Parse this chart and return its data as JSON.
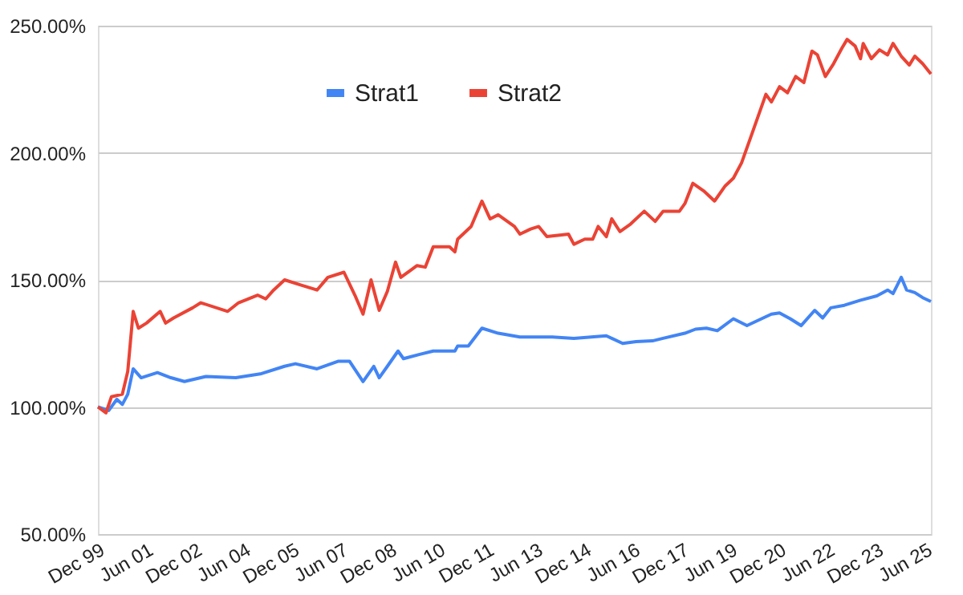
{
  "chart_data": {
    "type": "line",
    "series": [
      {
        "name": "Strat1",
        "color": "#4285f4",
        "x": [
          "1999-12",
          "2000-04",
          "2000-07",
          "2000-09",
          "2000-11",
          "2001-01",
          "2001-04",
          "2001-10",
          "2002-03",
          "2002-08",
          "2003-04",
          "2004-03",
          "2004-12",
          "2005-09",
          "2006-01",
          "2006-09",
          "2007-05",
          "2007-09",
          "2008-02",
          "2008-06",
          "2008-08",
          "2008-11",
          "2009-03",
          "2009-05",
          "2009-11",
          "2010-04",
          "2010-12",
          "2011-01",
          "2011-05",
          "2011-10",
          "2012-04",
          "2012-12",
          "2013-12",
          "2014-08",
          "2015-08",
          "2016-02",
          "2016-07",
          "2017-01",
          "2017-05",
          "2018-01",
          "2018-05",
          "2018-09",
          "2019-01",
          "2019-07",
          "2019-12",
          "2020-06",
          "2020-09",
          "2020-12",
          "2021-04",
          "2021-08",
          "2022-01",
          "2022-04",
          "2022-07",
          "2022-12",
          "2023-06",
          "2023-12",
          "2024-04",
          "2024-06",
          "2024-09",
          "2024-11",
          "2025-02",
          "2025-05",
          "2025-08"
        ],
        "values": [
          100,
          98.6,
          103,
          101,
          105,
          115,
          111.5,
          113.5,
          111.5,
          110,
          112,
          111.5,
          113,
          116,
          117,
          115,
          118,
          118,
          110,
          116,
          111.5,
          116,
          122,
          119,
          120.7,
          122,
          122,
          124,
          124,
          131,
          129,
          127.5,
          127.5,
          127,
          128,
          125,
          125.7,
          126,
          127,
          129,
          130.6,
          131,
          130,
          134.7,
          132,
          135,
          136.5,
          137,
          134.7,
          132,
          138,
          135,
          139,
          140,
          142,
          143.7,
          146,
          144.6,
          151,
          146,
          145,
          143,
          141.5
        ]
      },
      {
        "name": "Strat2",
        "color": "#ea4335",
        "x": [
          "1999-12",
          "2000-03",
          "2000-05",
          "2000-09",
          "2000-11",
          "2001-01",
          "2001-03",
          "2001-06",
          "2001-11",
          "2002-01",
          "2002-04",
          "2002-11",
          "2003-02",
          "2003-12",
          "2004-04",
          "2004-11",
          "2005-02",
          "2005-05",
          "2005-09",
          "2006-03",
          "2006-09",
          "2007-01",
          "2007-07",
          "2007-11",
          "2008-02",
          "2008-05",
          "2008-08",
          "2008-11",
          "2009-02",
          "2009-04",
          "2009-10",
          "2010-01",
          "2010-04",
          "2010-10",
          "2010-12",
          "2011-01",
          "2011-06",
          "2011-10",
          "2012-01",
          "2012-04",
          "2012-10",
          "2012-12",
          "2013-04",
          "2013-07",
          "2013-10",
          "2014-06",
          "2014-08",
          "2014-12",
          "2015-03",
          "2015-05",
          "2015-08",
          "2015-10",
          "2016-01",
          "2016-05",
          "2016-10",
          "2017-02",
          "2017-05",
          "2017-11",
          "2018-01",
          "2018-04",
          "2018-08",
          "2018-12",
          "2019-04",
          "2019-07",
          "2019-10",
          "2020-01",
          "2020-04",
          "2020-07",
          "2020-09",
          "2020-12",
          "2021-03",
          "2021-06",
          "2021-09",
          "2021-12",
          "2022-02",
          "2022-05",
          "2022-08",
          "2022-11",
          "2023-01",
          "2023-04",
          "2023-06",
          "2023-07",
          "2023-10",
          "2024-01",
          "2024-04",
          "2024-06",
          "2024-09",
          "2024-12",
          "2025-02",
          "2025-05",
          "2025-08"
        ],
        "values": [
          100,
          97.7,
          104,
          105,
          114,
          137.6,
          131,
          133,
          137.6,
          133,
          135,
          139,
          141,
          137.6,
          141,
          144,
          142.5,
          146,
          150,
          148,
          146,
          151,
          153,
          144,
          136.5,
          150,
          138,
          145.5,
          157,
          151,
          155.6,
          155,
          163,
          163,
          161,
          166,
          171,
          181,
          174,
          175.6,
          171,
          168,
          170,
          171,
          167,
          168,
          164,
          166,
          166,
          171,
          167,
          174,
          169,
          172,
          177,
          173,
          177,
          177,
          180,
          188,
          185,
          181,
          187,
          190,
          196,
          205,
          214,
          223,
          220,
          226,
          223.6,
          230,
          227.6,
          240,
          238.5,
          230,
          235,
          241,
          244.6,
          242,
          237,
          243,
          237,
          240.5,
          238.5,
          243,
          238,
          234.5,
          238,
          235,
          231
        ]
      }
    ],
    "xlim": [
      "1999-12",
      "2025-08"
    ],
    "xticks": [
      {
        "value": "1999-12",
        "label": "Dec 99"
      },
      {
        "value": "2001-06",
        "label": "Jun 01"
      },
      {
        "value": "2002-12",
        "label": "Dec 02"
      },
      {
        "value": "2004-06",
        "label": "Jun 04"
      },
      {
        "value": "2005-12",
        "label": "Dec 05"
      },
      {
        "value": "2007-06",
        "label": "Jun 07"
      },
      {
        "value": "2008-12",
        "label": "Dec 08"
      },
      {
        "value": "2010-06",
        "label": "Jun 10"
      },
      {
        "value": "2011-12",
        "label": "Dec 11"
      },
      {
        "value": "2013-06",
        "label": "Jun 13"
      },
      {
        "value": "2014-12",
        "label": "Dec 14"
      },
      {
        "value": "2016-06",
        "label": "Jun 16"
      },
      {
        "value": "2017-12",
        "label": "Dec 17"
      },
      {
        "value": "2019-06",
        "label": "Jun 19"
      },
      {
        "value": "2020-12",
        "label": "Dec 20"
      },
      {
        "value": "2022-06",
        "label": "Jun 22"
      },
      {
        "value": "2023-12",
        "label": "Dec 23"
      },
      {
        "value": "2025-06",
        "label": "Jun 25"
      }
    ],
    "ylim": [
      50,
      250
    ],
    "yticks": [
      {
        "value": 50,
        "label": "50.00%"
      },
      {
        "value": 100,
        "label": "100.00%"
      },
      {
        "value": 150,
        "label": "150.00%"
      },
      {
        "value": 200,
        "label": "200.00%"
      },
      {
        "value": 250,
        "label": "250.00%"
      }
    ],
    "grid": "y",
    "legend": "top",
    "marker": "none",
    "line_style": "solid"
  }
}
